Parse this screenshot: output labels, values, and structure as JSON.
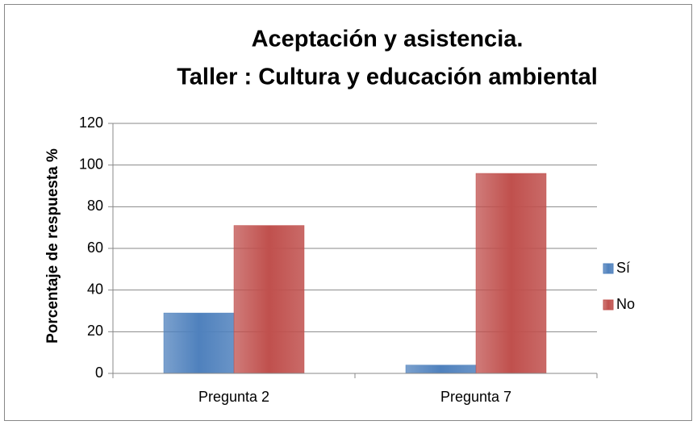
{
  "chart_data": {
    "type": "bar",
    "title": [
      "Aceptación y asistencia.",
      "Taller : Cultura y educación ambiental"
    ],
    "y_label": "Porcentaje de respuesta %",
    "categories": [
      "Pregunta 2",
      "Pregunta 7"
    ],
    "series": [
      {
        "name": "Sí",
        "color": "#4f81bd",
        "values": [
          29,
          4
        ]
      },
      {
        "name": "No",
        "color": "#c0504d",
        "values": [
          71,
          96
        ]
      }
    ],
    "ylim": [
      0,
      120
    ],
    "yticks": [
      0,
      20,
      40,
      60,
      80,
      100,
      120
    ],
    "grid": true,
    "legend": "right"
  }
}
